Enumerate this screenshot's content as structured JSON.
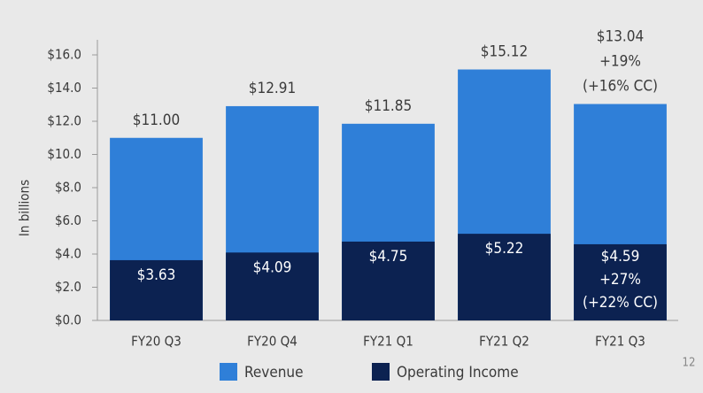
{
  "chart_data": {
    "type": "bar",
    "y_axis_label": "In billions",
    "categories": [
      "FY20 Q3",
      "FY20 Q4",
      "FY21 Q1",
      "FY21 Q2",
      "FY21 Q3"
    ],
    "series": [
      {
        "name": "Revenue",
        "color": "#2f7fd8",
        "values": [
          11.0,
          12.91,
          11.85,
          15.12,
          13.04
        ],
        "value_labels": [
          "$11.00",
          "$12.91",
          "$11.85",
          "$15.12",
          "$13.04"
        ]
      },
      {
        "name": "Operating Income",
        "color": "#0c2251",
        "values": [
          3.63,
          4.09,
          4.75,
          5.22,
          4.59
        ],
        "value_labels": [
          "$3.63",
          "$4.09",
          "$4.75",
          "$5.22",
          "$4.59"
        ]
      }
    ],
    "annotations": [
      {
        "series": "Revenue",
        "category": "FY21 Q3",
        "lines": [
          "+19%",
          "(+16% CC)"
        ]
      },
      {
        "series": "Operating Income",
        "category": "FY21 Q3",
        "lines": [
          "+27%",
          "(+22% CC)"
        ]
      }
    ],
    "ylim": [
      0,
      16
    ],
    "yticks": [
      {
        "value": 0,
        "label": "$0.0"
      },
      {
        "value": 2,
        "label": "$2.0"
      },
      {
        "value": 4,
        "label": "$4.0"
      },
      {
        "value": 6,
        "label": "$6.0"
      },
      {
        "value": 8,
        "label": "$8.0"
      },
      {
        "value": 10,
        "label": "$10.0"
      },
      {
        "value": 12,
        "label": "$12.0"
      },
      {
        "value": 14,
        "label": "$14.0"
      },
      {
        "value": 16,
        "label": "$16.0"
      }
    ],
    "overlap": true,
    "legend": "bottom",
    "page_number": "12"
  }
}
